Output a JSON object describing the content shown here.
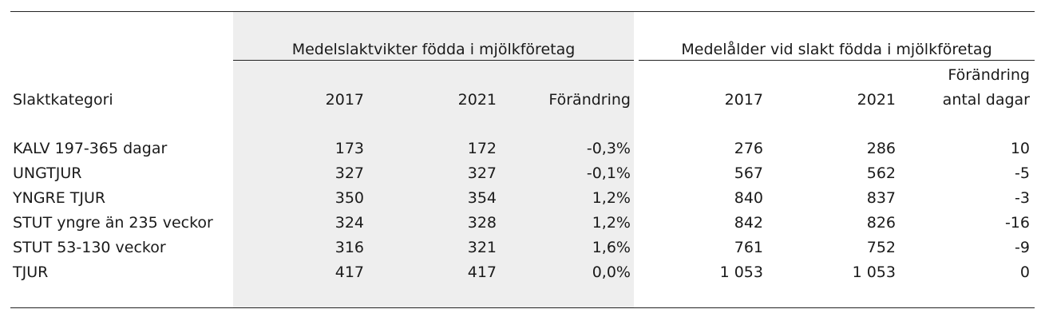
{
  "group_headers": {
    "weights": "Medelslaktvikter födda i mjölkföretag",
    "ages": "Medelålder vid slakt födda i mjölkföretag"
  },
  "columns": {
    "category": "Slaktkategori",
    "w2017": "2017",
    "w2021": "2021",
    "wchange": "Förändring",
    "a2017": "2017",
    "a2021": "2021",
    "achange_line1": "Förändring",
    "achange_line2": "antal dagar"
  },
  "rows": [
    {
      "category": "KALV 197-365 dagar",
      "w2017": "173",
      "w2021": "172",
      "wchange": "-0,3%",
      "a2017": "276",
      "a2021": "286",
      "achange": "10"
    },
    {
      "category": "UNGTJUR",
      "w2017": "327",
      "w2021": "327",
      "wchange": "-0,1%",
      "a2017": "567",
      "a2021": "562",
      "achange": "-5"
    },
    {
      "category": "YNGRE TJUR",
      "w2017": "350",
      "w2021": "354",
      "wchange": "1,2%",
      "a2017": "840",
      "a2021": "837",
      "achange": "-3"
    },
    {
      "category": "STUT yngre än 235 veckor",
      "w2017": "324",
      "w2021": "328",
      "wchange": "1,2%",
      "a2017": "842",
      "a2021": "826",
      "achange": "-16"
    },
    {
      "category": "STUT 53-130 veckor",
      "w2017": "316",
      "w2021": "321",
      "wchange": "1,6%",
      "a2017": "761",
      "a2021": "752",
      "achange": "-9"
    },
    {
      "category": "TJUR",
      "w2017": "417",
      "w2021": "417",
      "wchange": "0,0%",
      "a2017": "1 053",
      "a2021": "1 053",
      "achange": "0"
    }
  ],
  "colors": {
    "shade": "#eeeeee",
    "rule": "#222222",
    "text": "#1a1a1a"
  }
}
